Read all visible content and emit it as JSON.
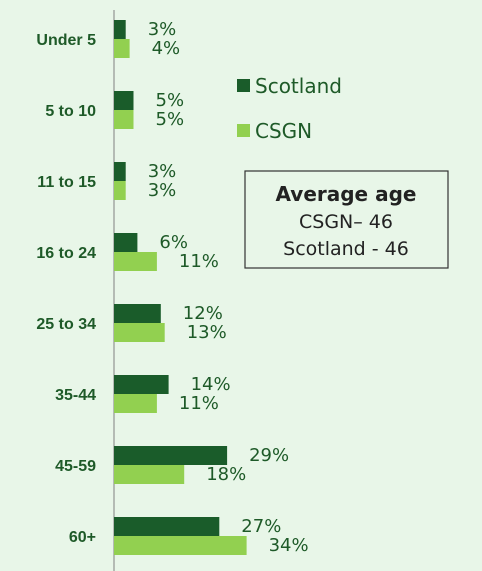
{
  "chart_data": {
    "type": "bar",
    "orientation": "horizontal",
    "categories": [
      "Under 5",
      "5 to 10",
      "11 to 15",
      "16 to 24",
      "25 to 34",
      "35-44",
      "45-59",
      "60+"
    ],
    "series": [
      {
        "name": "Scotland",
        "values": [
          3,
          5,
          3,
          6,
          12,
          14,
          29,
          27
        ],
        "color": "#1a5c2a"
      },
      {
        "name": "CSGN",
        "values": [
          4,
          5,
          3,
          11,
          13,
          11,
          18,
          34
        ],
        "color": "#92d050"
      }
    ],
    "value_suffix": "%",
    "legend_position": "right",
    "grid": false
  },
  "info_box": {
    "title": "Average age",
    "lines": [
      "CSGN– 46",
      "Scotland - 46"
    ]
  }
}
